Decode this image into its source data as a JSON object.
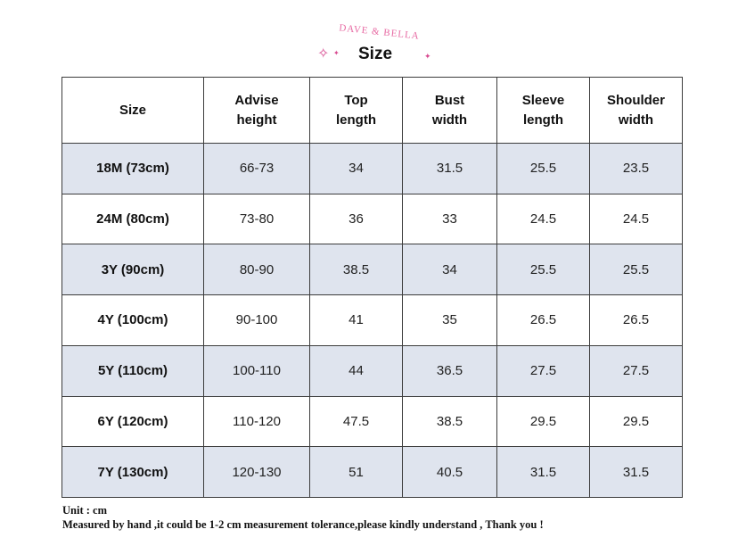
{
  "header": {
    "brand": "DAVE & BELLA",
    "title": "Size",
    "sparkle_color": "#d84b91"
  },
  "table": {
    "columns": [
      "Size",
      "Advise height",
      "Top length",
      "Bust width",
      "Sleeve length",
      "Shoulder width"
    ],
    "rows": [
      [
        "18M (73cm)",
        "66-73",
        "34",
        "31.5",
        "25.5",
        "23.5"
      ],
      [
        "24M (80cm)",
        "73-80",
        "36",
        "33",
        "24.5",
        "24.5"
      ],
      [
        "3Y (90cm)",
        "80-90",
        "38.5",
        "34",
        "25.5",
        "25.5"
      ],
      [
        "4Y (100cm)",
        "90-100",
        "41",
        "35",
        "26.5",
        "26.5"
      ],
      [
        "5Y (110cm)",
        "100-110",
        "44",
        "36.5",
        "27.5",
        "27.5"
      ],
      [
        "6Y (120cm)",
        "110-120",
        "47.5",
        "38.5",
        "29.5",
        "29.5"
      ],
      [
        "7Y (130cm)",
        "120-130",
        "51",
        "40.5",
        "31.5",
        "31.5"
      ]
    ],
    "shade_color": "#dfe4ee"
  },
  "notes": {
    "unit": "Unit : cm",
    "message": "Measured by hand ,it could be 1-2 cm measurement tolerance,please kindly understand , Thank you !"
  }
}
